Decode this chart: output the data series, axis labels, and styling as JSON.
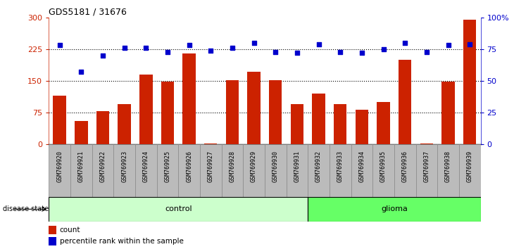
{
  "title": "GDS5181 / 31676",
  "samples": [
    "GSM769920",
    "GSM769921",
    "GSM769922",
    "GSM769923",
    "GSM769924",
    "GSM769925",
    "GSM769926",
    "GSM769927",
    "GSM769928",
    "GSM769929",
    "GSM769930",
    "GSM769931",
    "GSM769932",
    "GSM769933",
    "GSM769934",
    "GSM769935",
    "GSM769936",
    "GSM769937",
    "GSM769938",
    "GSM769939"
  ],
  "counts": [
    115,
    55,
    78,
    95,
    165,
    148,
    215,
    2,
    152,
    172,
    152,
    95,
    120,
    95,
    82,
    100,
    200,
    2,
    148,
    295
  ],
  "percentile_ranks": [
    78,
    57,
    70,
    76,
    76,
    73,
    78,
    74,
    76,
    80,
    73,
    72,
    79,
    73,
    72,
    75,
    80,
    73,
    78,
    79
  ],
  "control_count": 12,
  "glioma_count": 8,
  "bar_color": "#cc2200",
  "dot_color": "#0000cc",
  "left_ylim": [
    0,
    300
  ],
  "right_ylim": [
    0,
    100
  ],
  "left_yticks": [
    0,
    75,
    150,
    225,
    300
  ],
  "right_yticks": [
    0,
    25,
    50,
    75,
    100
  ],
  "right_yticklabels": [
    "0",
    "25",
    "50",
    "75",
    "100%"
  ],
  "hline_values": [
    75,
    150,
    225
  ],
  "control_label": "control",
  "glioma_label": "glioma",
  "disease_state_label": "disease state",
  "legend_count_label": "count",
  "legend_pct_label": "percentile rank within the sample",
  "control_color": "#ccffcc",
  "glioma_color": "#66ff66",
  "bar_width": 0.6,
  "xtick_bg_color": "#bbbbbb",
  "title_fontsize": 9
}
